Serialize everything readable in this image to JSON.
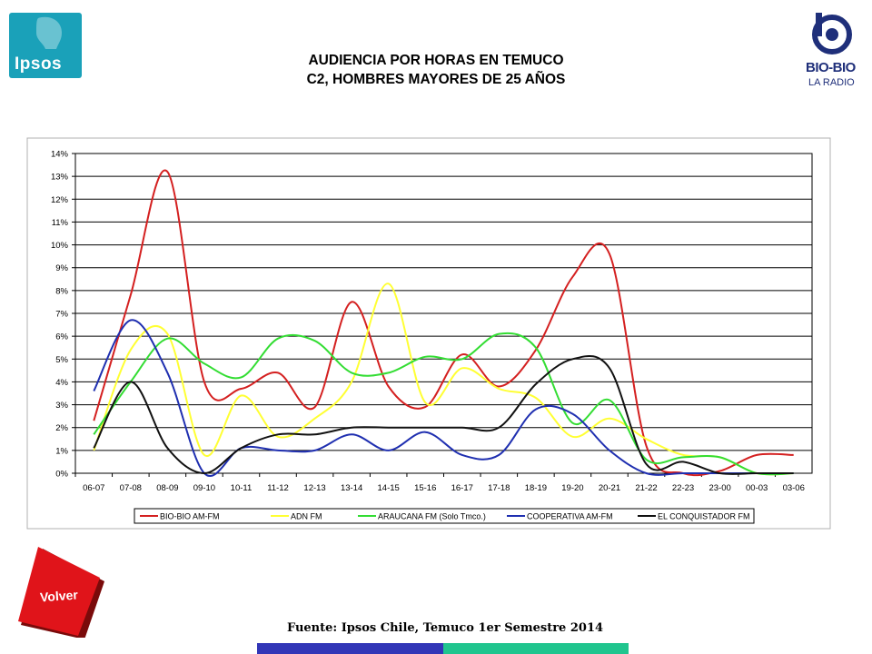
{
  "logos": {
    "left": "Ipsos",
    "right_main": "BIO-BIO",
    "right_sub": "LA RADIO"
  },
  "header": {
    "title_line1": "AUDIENCIA POR HORAS EN TEMUCO",
    "title_line2": "C2, HOMBRES MAYORES DE 25 AÑOS"
  },
  "nav": {
    "back_label": "Volver"
  },
  "footer": {
    "source": "Fuente: Ipsos Chile, Temuco 1er Semestre 2014"
  },
  "colors": {
    "ipsos": "#1aa1b9",
    "volver": "#e0141a",
    "footer_blue": "#3236b7",
    "footer_green": "#20c58e"
  },
  "chart_data": {
    "type": "line",
    "title": "",
    "xlabel": "",
    "ylabel": "",
    "ylim": [
      0,
      14
    ],
    "y_ticks": [
      0,
      1,
      2,
      3,
      4,
      5,
      6,
      7,
      8,
      9,
      10,
      11,
      12,
      13,
      14
    ],
    "y_tick_labels": [
      "0%",
      "1%",
      "2%",
      "3%",
      "4%",
      "5%",
      "6%",
      "7%",
      "8%",
      "9%",
      "10%",
      "11%",
      "12%",
      "13%",
      "14%"
    ],
    "grid": true,
    "legend_position": "bottom",
    "categories": [
      "06-07",
      "07-08",
      "08-09",
      "09-10",
      "10-11",
      "11-12",
      "12-13",
      "13-14",
      "14-15",
      "15-16",
      "16-17",
      "17-18",
      "18-19",
      "19-20",
      "20-21",
      "21-22",
      "22-23",
      "23-00",
      "00-03",
      "03-06"
    ],
    "series": [
      {
        "name": "BIO-BIO AM-FM",
        "color": "#d42020",
        "values": [
          2.3,
          7.8,
          13.2,
          4.0,
          3.7,
          4.4,
          2.9,
          7.5,
          3.8,
          2.9,
          5.2,
          3.8,
          5.4,
          8.6,
          9.6,
          1.2,
          0.0,
          0.1,
          0.8,
          0.8
        ]
      },
      {
        "name": "ADN FM",
        "color": "#ffff33",
        "values": [
          1.0,
          5.4,
          6.1,
          0.8,
          3.4,
          1.6,
          2.4,
          4.0,
          8.3,
          3.1,
          4.6,
          3.7,
          3.3,
          1.6,
          2.4,
          1.5,
          0.8,
          0.7,
          0.0,
          0.0
        ]
      },
      {
        "name": "ARAUCANA FM  (Solo Tmco.)",
        "color": "#33dd33",
        "values": [
          1.7,
          4.0,
          5.9,
          4.8,
          4.2,
          5.9,
          5.8,
          4.4,
          4.4,
          5.1,
          5.0,
          6.1,
          5.5,
          2.2,
          3.2,
          0.6,
          0.7,
          0.7,
          0.0,
          0.0
        ]
      },
      {
        "name": "COOPERATIVA AM-FM",
        "color": "#1f2fb0",
        "values": [
          3.6,
          6.7,
          4.4,
          0.0,
          1.1,
          1.0,
          1.0,
          1.7,
          1.0,
          1.8,
          0.8,
          0.8,
          2.8,
          2.6,
          1.0,
          0.0,
          0.0,
          0.0,
          0.0,
          0.0
        ]
      },
      {
        "name": "EL CONQUISTADOR FM",
        "color": "#111111",
        "values": [
          1.1,
          4.0,
          1.1,
          0.0,
          1.1,
          1.7,
          1.7,
          2.0,
          2.0,
          2.0,
          2.0,
          2.0,
          3.9,
          5.0,
          4.6,
          0.4,
          0.5,
          0.0,
          0.0,
          0.0
        ]
      }
    ]
  }
}
